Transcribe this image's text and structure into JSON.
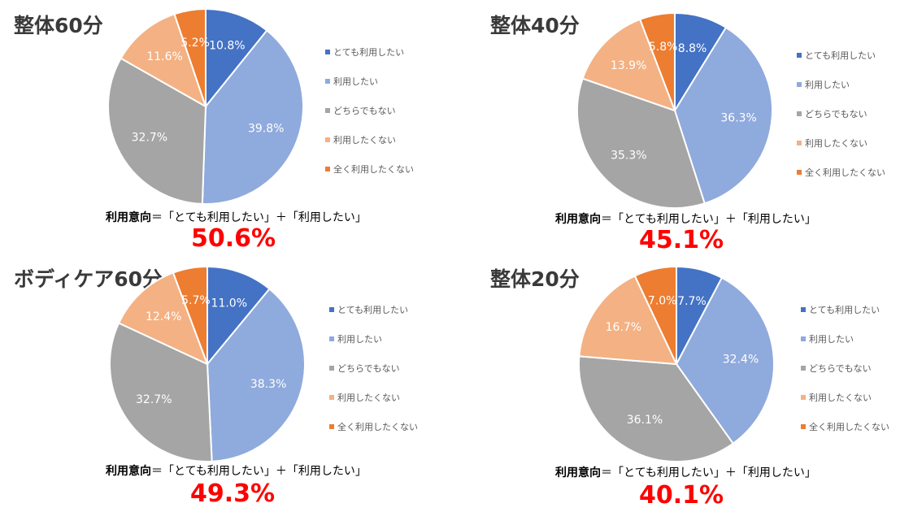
{
  "formula_prefix": "利用意向",
  "formula_rest": "＝「とても利用したい」＋「利用したい」",
  "colors": [
    "#4472c4",
    "#8faadc",
    "#a5a5a5",
    "#f4b183",
    "#ed7d31"
  ],
  "chart_data": [
    {
      "type": "pie",
      "title": "整体60分",
      "categories": [
        "とても利用したい",
        "利用したい",
        "どちらでもない",
        "利用したくない",
        "全く利用したくない"
      ],
      "values": [
        10.8,
        39.8,
        32.7,
        11.6,
        5.2
      ],
      "labels": [
        "10.8%",
        "39.8%",
        "32.7%",
        "11.6%",
        "5.2%"
      ],
      "total": "50.6%",
      "legend": "right"
    },
    {
      "type": "pie",
      "title": "整体40分",
      "categories": [
        "とても利用したい",
        "利用したい",
        "どちらでもない",
        "利用したくない",
        "全く利用したくない"
      ],
      "values": [
        8.8,
        36.3,
        35.3,
        13.9,
        5.8
      ],
      "labels": [
        "8.8%",
        "36.3%",
        "35.3%",
        "13.9%",
        "5.8%"
      ],
      "total": "45.1%",
      "legend": "right"
    },
    {
      "type": "pie",
      "title": "ボディケア60分",
      "categories": [
        "とても利用したい",
        "利用したい",
        "どちらでもない",
        "利用したくない",
        "全く利用したくない"
      ],
      "values": [
        11.0,
        38.3,
        32.7,
        12.4,
        5.7
      ],
      "labels": [
        "11.0%",
        "38.3%",
        "32.7%",
        "12.4%",
        "5.7%"
      ],
      "total": "49.3%",
      "legend": "right"
    },
    {
      "type": "pie",
      "title": "整体20分",
      "categories": [
        "とても利用したい",
        "利用したい",
        "どちらでもない",
        "利用したくない",
        "全く利用したくない"
      ],
      "values": [
        7.7,
        32.4,
        36.1,
        16.7,
        7.0
      ],
      "labels": [
        "7.7%",
        "32.4%",
        "36.1%",
        "16.7%",
        "7.0%"
      ],
      "total": "40.1%",
      "legend": "right"
    }
  ]
}
